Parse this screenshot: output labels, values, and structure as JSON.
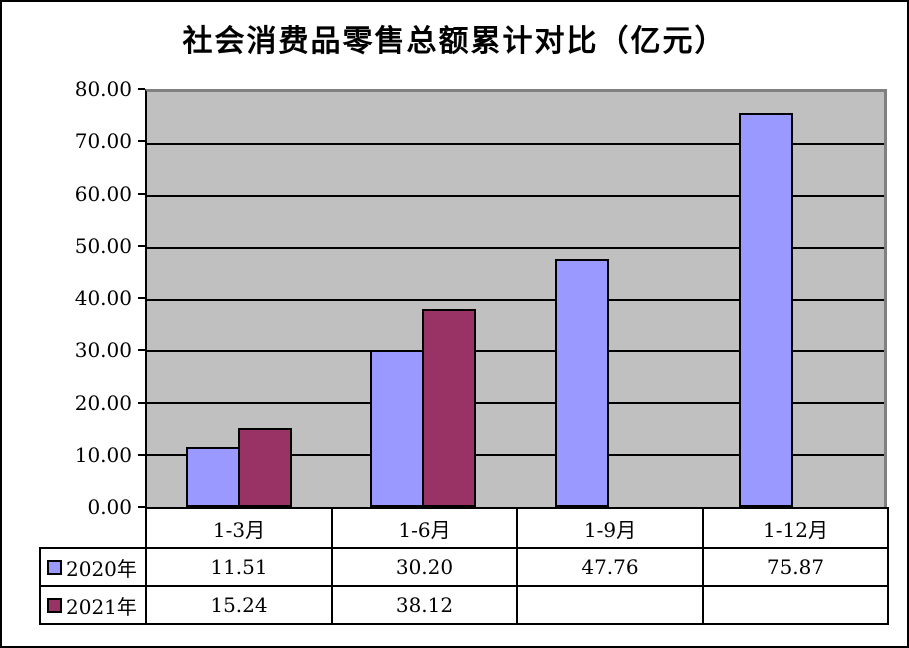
{
  "title": "社会消费品零售总额累计对比（亿元）",
  "chart_data": {
    "type": "bar",
    "title": "社会消费品零售总额累计对比（亿元）",
    "categories": [
      "1-3月",
      "1-6月",
      "1-9月",
      "1-12月"
    ],
    "series": [
      {
        "name": "2020年",
        "color": "#9999FF",
        "values": [
          11.51,
          30.2,
          47.76,
          75.87
        ],
        "labels": [
          "11.51",
          "30.20",
          "47.76",
          "75.87"
        ]
      },
      {
        "name": "2021年",
        "color": "#993366",
        "values": [
          15.24,
          38.12,
          null,
          null
        ],
        "labels": [
          "15.24",
          "38.12",
          "",
          ""
        ]
      }
    ],
    "ylim": [
      0,
      80
    ],
    "ytick_step": 10,
    "ytick_labels": [
      "80.00",
      "70.00",
      "60.00",
      "50.00",
      "40.00",
      "30.00",
      "20.00",
      "10.00",
      "0.00"
    ],
    "grid": true,
    "legend_position": "data-table-left",
    "colors": {
      "plot_background": "#C0C0C0",
      "gridline": "#000000",
      "plot_border_topright": "#808080",
      "axis": "#000000",
      "bar_border": "#000000",
      "frame_border": "#000000",
      "page_background": "#FFFFFF"
    }
  }
}
